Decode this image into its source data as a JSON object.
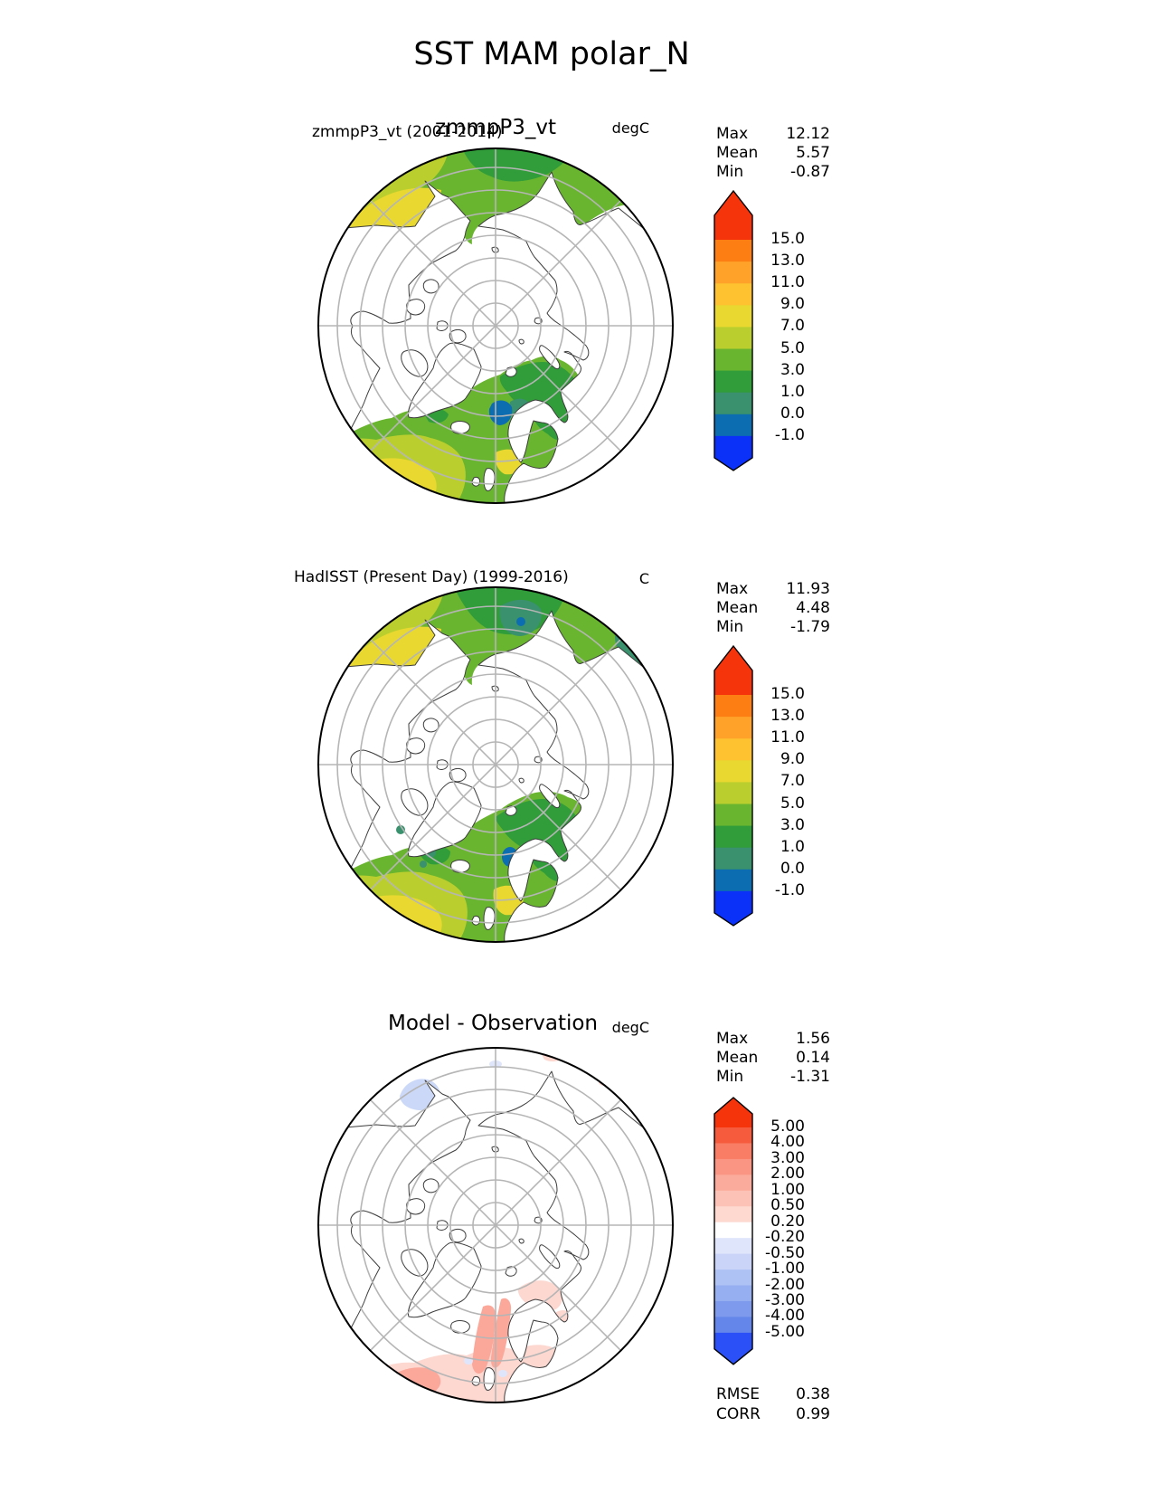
{
  "page": {
    "title": "SST MAM polar_N"
  },
  "panels": [
    {
      "title": "zmmpP3_vt (2001-2014)",
      "overlay_title": "zmmpP3_vt",
      "units": "degC",
      "stats": [
        {
          "label": "Max",
          "value": "12.12"
        },
        {
          "label": "Mean",
          "value": "5.57"
        },
        {
          "label": "Min",
          "value": "-0.87"
        }
      ],
      "colorbar": {
        "ticks": [
          "15.0",
          "13.0",
          "11.0",
          "9.0",
          "7.0",
          "5.0",
          "3.0",
          "1.0",
          "0.0",
          "-1.0"
        ],
        "colors": [
          "#f5340c",
          "#fd7e12",
          "#fea229",
          "#fec130",
          "#e8d82f",
          "#bacf2d",
          "#69b52f",
          "#309d3a",
          "#3a916d",
          "#0d6db1",
          "#0b31f9"
        ]
      }
    },
    {
      "title": "HadISST (Present Day) (1999-2016)",
      "units": "C",
      "stats": [
        {
          "label": "Max",
          "value": "11.93"
        },
        {
          "label": "Mean",
          "value": "4.48"
        },
        {
          "label": "Min",
          "value": "-1.79"
        }
      ],
      "colorbar": {
        "ticks": [
          "15.0",
          "13.0",
          "11.0",
          "9.0",
          "7.0",
          "5.0",
          "3.0",
          "1.0",
          "0.0",
          "-1.0"
        ],
        "colors": [
          "#f5340c",
          "#fd7e12",
          "#fea229",
          "#fec130",
          "#e8d82f",
          "#bacf2d",
          "#69b52f",
          "#309d3a",
          "#3a916d",
          "#0d6db1",
          "#0b31f9"
        ]
      }
    },
    {
      "title": "Model - Observation",
      "units": "degC",
      "stats": [
        {
          "label": "Max",
          "value": "1.56"
        },
        {
          "label": "Mean",
          "value": "0.14"
        },
        {
          "label": "Min",
          "value": "-1.31"
        }
      ],
      "colorbar": {
        "ticks": [
          "5.00",
          "4.00",
          "3.00",
          "2.00",
          "1.00",
          "0.50",
          "0.20",
          "-0.20",
          "-0.50",
          "-1.00",
          "-2.00",
          "-3.00",
          "-4.00",
          "-5.00"
        ],
        "colors": [
          "#f5340c",
          "#f75b3e",
          "#f97d64",
          "#fa9583",
          "#fbab9c",
          "#fcc2b5",
          "#fdd9d0",
          "#ffffff",
          "#dfe6fb",
          "#c9d4f8",
          "#afc2f4",
          "#96aff0",
          "#7d9aed",
          "#6486ea",
          "#2b50f7"
        ]
      },
      "extra_stats": [
        {
          "label": "RMSE",
          "value": "0.38"
        },
        {
          "label": "CORR",
          "value": "0.99"
        }
      ]
    }
  ],
  "chart_data": [
    {
      "type": "heatmap",
      "projection": "north_polar_stereographic",
      "title": "zmmpP3_vt (2001-2014)",
      "variable": "SST",
      "season": "MAM",
      "region": "polar_N",
      "units": "degC",
      "stats": {
        "max": 12.12,
        "mean": 5.57,
        "min": -0.87
      },
      "contour_levels": [
        -1.0,
        0.0,
        1.0,
        3.0,
        5.0,
        7.0,
        9.0,
        11.0,
        13.0,
        15.0
      ],
      "colorbar_extend": "both",
      "legend_position": "right"
    },
    {
      "type": "heatmap",
      "projection": "north_polar_stereographic",
      "title": "HadISST (Present Day) (1999-2016)",
      "variable": "SST",
      "season": "MAM",
      "region": "polar_N",
      "units": "C",
      "stats": {
        "max": 11.93,
        "mean": 4.48,
        "min": -1.79
      },
      "contour_levels": [
        -1.0,
        0.0,
        1.0,
        3.0,
        5.0,
        7.0,
        9.0,
        11.0,
        13.0,
        15.0
      ],
      "colorbar_extend": "both",
      "legend_position": "right"
    },
    {
      "type": "heatmap",
      "projection": "north_polar_stereographic",
      "title": "Model - Observation",
      "variable": "SST difference",
      "season": "MAM",
      "region": "polar_N",
      "units": "degC",
      "stats": {
        "max": 1.56,
        "mean": 0.14,
        "min": -1.31,
        "rmse": 0.38,
        "corr": 0.99
      },
      "contour_levels": [
        -5.0,
        -4.0,
        -3.0,
        -2.0,
        -1.0,
        -0.5,
        -0.2,
        0.2,
        0.5,
        1.0,
        2.0,
        3.0,
        4.0,
        5.0
      ],
      "colorbar_extend": "both",
      "legend_position": "right"
    }
  ]
}
